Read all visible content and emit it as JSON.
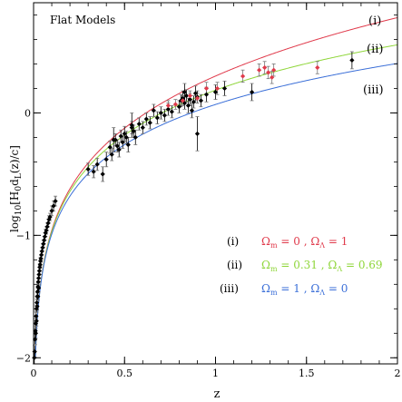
{
  "chart_data": {
    "type": "scatter",
    "title": "Flat Models",
    "xlabel": "z",
    "ylabel_parts": [
      "log",
      "10",
      "[H",
      "0",
      "d",
      "L",
      "(z)/c]"
    ],
    "xlim": [
      0,
      2
    ],
    "ylim": [
      -2.05,
      0.9
    ],
    "xticks": [
      0,
      0.5,
      1,
      1.5,
      2
    ],
    "xtick_labels": [
      "0",
      "0.5",
      "1",
      "1.5",
      "2"
    ],
    "yticks": [
      -2,
      -1,
      0
    ],
    "ytick_labels": [
      "−2",
      "−1",
      "0"
    ],
    "grid": false,
    "curves": [
      {
        "id": "i",
        "label": "(i)",
        "color": "#e03a4b",
        "omega_m": 0,
        "omega_l": 1
      },
      {
        "id": "ii",
        "label": "(ii)",
        "color": "#8fd63a",
        "omega_m": 0.31,
        "omega_l": 0.69
      },
      {
        "id": "iii",
        "label": "(iii)",
        "color": "#3b6fd8",
        "omega_m": 1,
        "omega_l": 0
      }
    ],
    "legend": {
      "placement": "lower-right",
      "entries": [
        {
          "label": "(i)",
          "color": "#e03a4b",
          "om_val": "0",
          "ol_val": "1"
        },
        {
          "label": "(ii)",
          "color": "#8fd63a",
          "om_val": "0.31",
          "ol_val": "0.69"
        },
        {
          "label": "(iii)",
          "color": "#3b6fd8",
          "om_val": "1",
          "ol_val": "0"
        }
      ]
    },
    "series": [
      {
        "color": "#000000",
        "points": [
          [
            0.004,
            -2.0,
            0.05
          ],
          [
            0.006,
            -1.95,
            0.05
          ],
          [
            0.008,
            -1.85,
            0.04
          ],
          [
            0.01,
            -1.78,
            0.04
          ],
          [
            0.012,
            -1.72,
            0.04
          ],
          [
            0.014,
            -1.66,
            0.04
          ],
          [
            0.016,
            -1.6,
            0.03
          ],
          [
            0.018,
            -1.55,
            0.03
          ],
          [
            0.02,
            -1.5,
            0.03
          ],
          [
            0.022,
            -1.46,
            0.03
          ],
          [
            0.024,
            -1.42,
            0.03
          ],
          [
            0.026,
            -1.38,
            0.03
          ],
          [
            0.028,
            -1.35,
            0.03
          ],
          [
            0.03,
            -1.32,
            0.03
          ],
          [
            0.032,
            -1.29,
            0.03
          ],
          [
            0.034,
            -1.26,
            0.03
          ],
          [
            0.036,
            -1.24,
            0.03
          ],
          [
            0.038,
            -1.21,
            0.03
          ],
          [
            0.04,
            -1.19,
            0.03
          ],
          [
            0.043,
            -1.16,
            0.03
          ],
          [
            0.046,
            -1.13,
            0.03
          ],
          [
            0.05,
            -1.1,
            0.03
          ],
          [
            0.054,
            -1.07,
            0.03
          ],
          [
            0.058,
            -1.04,
            0.03
          ],
          [
            0.062,
            -1.01,
            0.03
          ],
          [
            0.066,
            -0.98,
            0.03
          ],
          [
            0.07,
            -0.96,
            0.03
          ],
          [
            0.075,
            -0.93,
            0.03
          ],
          [
            0.08,
            -0.9,
            0.03
          ],
          [
            0.085,
            -0.87,
            0.03
          ],
          [
            0.09,
            -0.85,
            0.03
          ],
          [
            0.1,
            -0.8,
            0.04
          ],
          [
            0.11,
            -0.76,
            0.04
          ],
          [
            0.12,
            -0.72,
            0.04
          ],
          [
            0.012,
            -1.8,
            0.04
          ],
          [
            0.016,
            -1.7,
            0.04
          ],
          [
            0.02,
            -1.58,
            0.03
          ],
          [
            0.024,
            -1.5,
            0.03
          ],
          [
            0.028,
            -1.43,
            0.03
          ],
          [
            0.3,
            -0.46,
            0.05
          ],
          [
            0.33,
            -0.48,
            0.05
          ],
          [
            0.35,
            -0.42,
            0.05
          ],
          [
            0.38,
            -0.5,
            0.06
          ],
          [
            0.4,
            -0.38,
            0.06
          ],
          [
            0.42,
            -0.28,
            0.05
          ],
          [
            0.43,
            -0.34,
            0.05
          ],
          [
            0.45,
            -0.22,
            0.05
          ],
          [
            0.46,
            -0.27,
            0.05
          ],
          [
            0.47,
            -0.3,
            0.06
          ],
          [
            0.48,
            -0.19,
            0.05
          ],
          [
            0.49,
            -0.24,
            0.05
          ],
          [
            0.5,
            -0.17,
            0.06
          ],
          [
            0.51,
            -0.2,
            0.05
          ],
          [
            0.52,
            -0.26,
            0.06
          ],
          [
            0.54,
            -0.12,
            0.05
          ],
          [
            0.55,
            -0.15,
            0.05
          ],
          [
            0.56,
            -0.2,
            0.06
          ],
          [
            0.58,
            -0.09,
            0.05
          ],
          [
            0.6,
            -0.12,
            0.05
          ],
          [
            0.62,
            -0.05,
            0.05
          ],
          [
            0.64,
            -0.08,
            0.05
          ],
          [
            0.66,
            0.02,
            0.05
          ],
          [
            0.68,
            -0.04,
            0.05
          ],
          [
            0.7,
            0.0,
            0.05
          ],
          [
            0.72,
            -0.02,
            0.05
          ],
          [
            0.74,
            0.03,
            0.05
          ],
          [
            0.76,
            0.01,
            0.05
          ],
          [
            0.8,
            0.05,
            0.05
          ],
          [
            0.81,
            0.1,
            0.05
          ],
          [
            0.82,
            0.12,
            0.06
          ],
          [
            0.83,
            0.08,
            0.05
          ],
          [
            0.84,
            0.14,
            0.05
          ],
          [
            0.85,
            0.06,
            0.06
          ],
          [
            0.86,
            0.11,
            0.05
          ],
          [
            0.87,
            0.02,
            0.06
          ],
          [
            0.88,
            0.09,
            0.05
          ],
          [
            0.89,
            0.16,
            0.06
          ],
          [
            0.9,
            0.13,
            0.05
          ],
          [
            0.92,
            0.1,
            0.05
          ],
          [
            0.95,
            0.15,
            0.06
          ],
          [
            1.0,
            0.17,
            0.06
          ],
          [
            1.05,
            0.2,
            0.06
          ],
          [
            1.2,
            0.17,
            0.07
          ],
          [
            1.75,
            0.43,
            0.07
          ],
          [
            0.9,
            -0.17,
            0.14
          ],
          [
            0.44,
            -0.22,
            0.1
          ],
          [
            0.54,
            -0.1,
            0.1
          ],
          [
            0.83,
            0.17,
            0.07
          ]
        ]
      },
      {
        "color": "#e03a4b",
        "points": [
          [
            0.82,
            0.1,
            0.04
          ],
          [
            0.86,
            0.14,
            0.04
          ],
          [
            0.9,
            0.12,
            0.04
          ],
          [
            0.95,
            0.2,
            0.05
          ],
          [
            1.01,
            0.2,
            0.05
          ],
          [
            1.15,
            0.3,
            0.05
          ],
          [
            1.24,
            0.35,
            0.05
          ],
          [
            1.27,
            0.37,
            0.05
          ],
          [
            1.29,
            0.33,
            0.05
          ],
          [
            1.31,
            0.29,
            0.05
          ],
          [
            1.32,
            0.35,
            0.05
          ],
          [
            1.56,
            0.37,
            0.05
          ],
          [
            0.78,
            0.07,
            0.04
          ],
          [
            0.74,
            0.06,
            0.04
          ]
        ]
      }
    ]
  }
}
